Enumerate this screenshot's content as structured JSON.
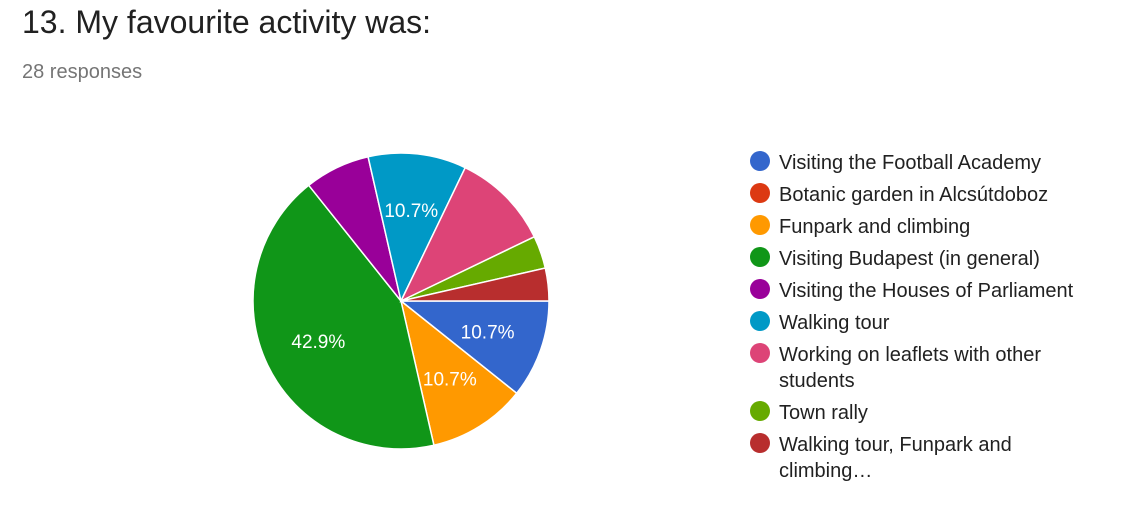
{
  "question": {
    "title": "13. My favourite activity was:",
    "responses": "28 responses"
  },
  "chart_data": {
    "type": "pie",
    "total_responses": 28,
    "slices": [
      {
        "label": "Visiting the Football Academy",
        "count": 3,
        "percent_label": "10.7%",
        "color": "#3366cc"
      },
      {
        "label": "Botanic garden in Alcsútdoboz",
        "count": 0,
        "percent_label": "",
        "color": "#dc3912"
      },
      {
        "label": "Funpark and climbing",
        "count": 3,
        "percent_label": "10.7%",
        "color": "#ff9900"
      },
      {
        "label": "Visiting Budapest (in general)",
        "count": 12,
        "percent_label": "42.9%",
        "color": "#109618"
      },
      {
        "label": "Visiting the Houses of Parliament",
        "count": 2,
        "percent_label": "",
        "color": "#990099"
      },
      {
        "label": "Walking tour",
        "count": 3,
        "percent_label": "10.7%",
        "color": "#0099c6"
      },
      {
        "label": "Working on leaflets with other students",
        "count": 3,
        "percent_label": "",
        "color": "#dd4477"
      },
      {
        "label": "Town rally",
        "count": 1,
        "percent_label": "",
        "color": "#66aa00"
      },
      {
        "label": "Walking tour, Funpark and climbing…",
        "count": 1,
        "percent_label": "",
        "color": "#b82e2e"
      }
    ],
    "legend_position": "right"
  }
}
